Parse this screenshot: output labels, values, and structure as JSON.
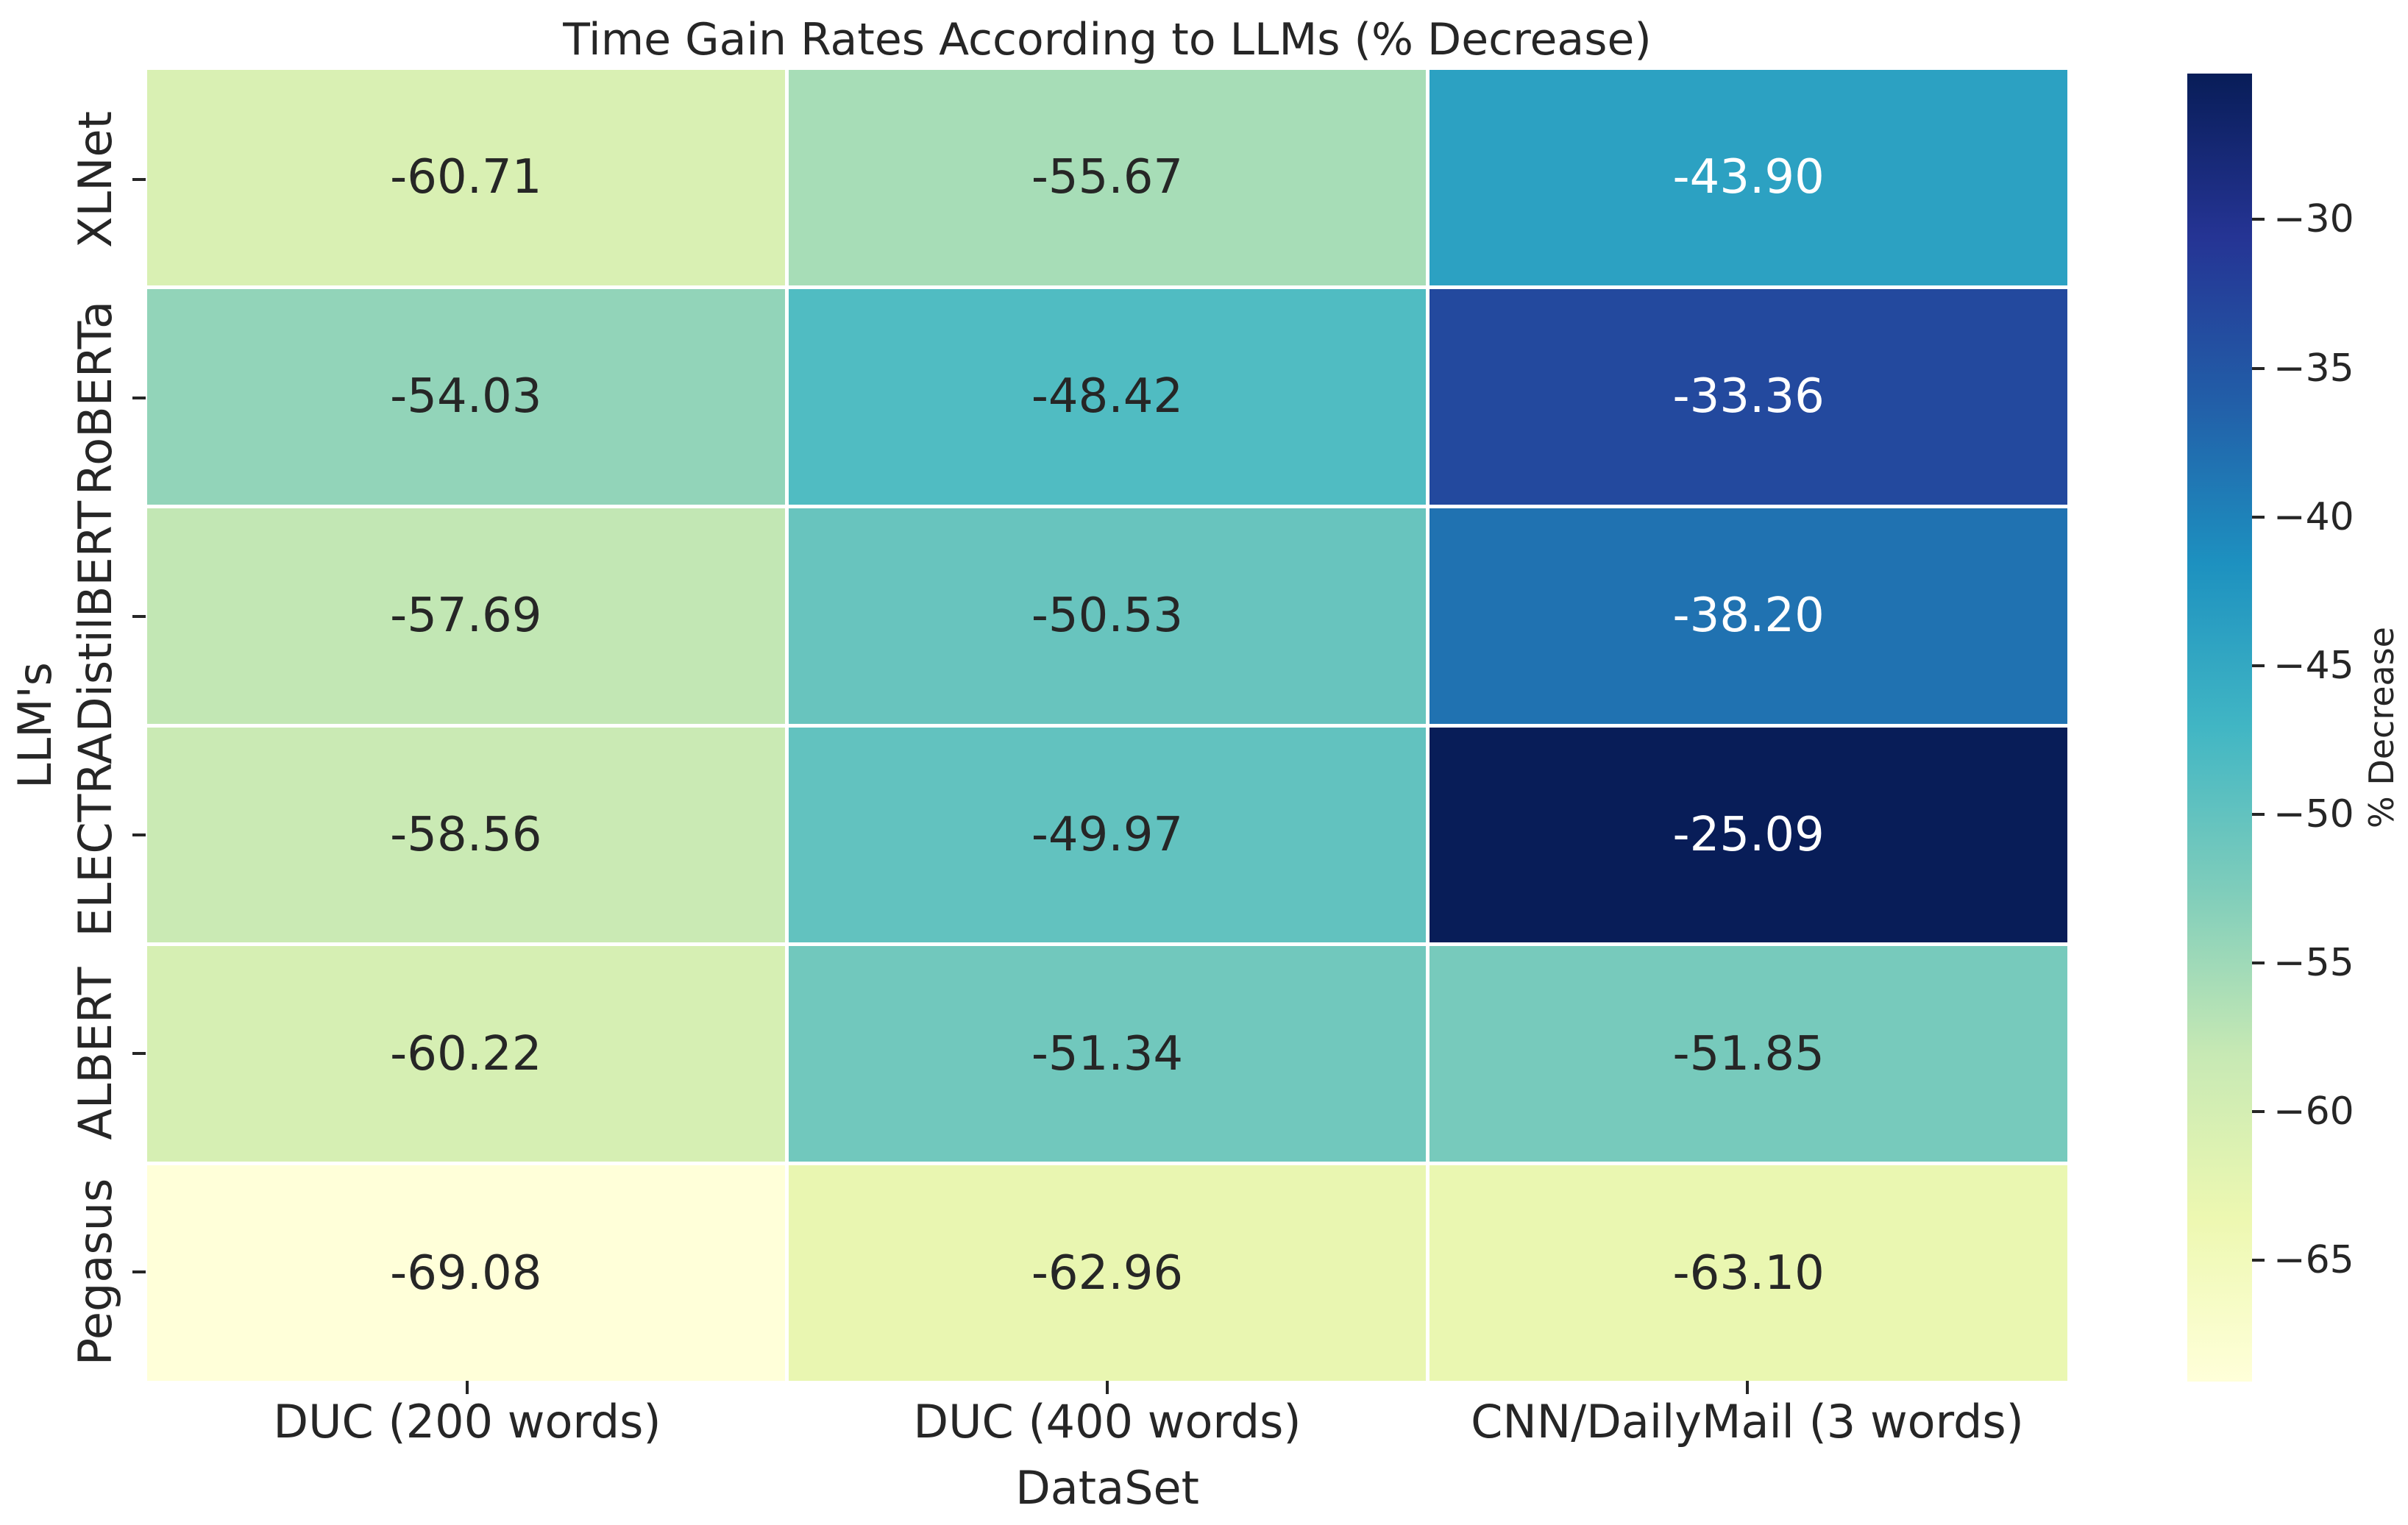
{
  "title": "Time Gain Rates According to LLMs (% Decrease)",
  "chart_data": {
    "type": "heatmap",
    "title": "Time Gain Rates According to LLMs (% Decrease)",
    "xlabel": "DataSet",
    "ylabel": "LLM's",
    "rows": [
      "XLNet",
      "RoBERTa",
      "DistilBERT",
      "ELECTRA",
      "ALBERT",
      "Pegasus"
    ],
    "columns": [
      "DUC (200 words)",
      "DUC (400 words)",
      "CNN/DailyMail (3 words)"
    ],
    "values": [
      [
        -60.71,
        -55.67,
        -43.9
      ],
      [
        -54.03,
        -48.42,
        -33.36
      ],
      [
        -57.69,
        -50.53,
        -38.2
      ],
      [
        -58.56,
        -49.97,
        -25.09
      ],
      [
        -60.22,
        -51.34,
        -51.85
      ],
      [
        -69.08,
        -62.96,
        -63.1
      ]
    ],
    "annotations_visible": true,
    "annotation_decimals": 2,
    "grid_lines": "thin white between cells",
    "colorbar": {
      "label": "% Decrease",
      "ticks": [
        -30,
        -35,
        -40,
        -45,
        -50,
        -55,
        -60,
        -65
      ],
      "tick_labels": [
        "−30",
        "−35",
        "−40",
        "−45",
        "−50",
        "−55",
        "−60",
        "−65"
      ],
      "vmin": -69.08,
      "vmax": -25.09,
      "position": "right"
    }
  },
  "colors": {
    "figure_background": "#ffffff",
    "label_text": "#262626",
    "annotation_dark": "#262626",
    "annotation_light": "#ffffff",
    "colormap_name": "YlGnBu",
    "colormap_light_to_dark": [
      "#ffffd9",
      "#edf8b1",
      "#c7e9b4",
      "#7fcdbb",
      "#41b6c4",
      "#1d91c0",
      "#225ea8",
      "#253494",
      "#081d58"
    ]
  }
}
